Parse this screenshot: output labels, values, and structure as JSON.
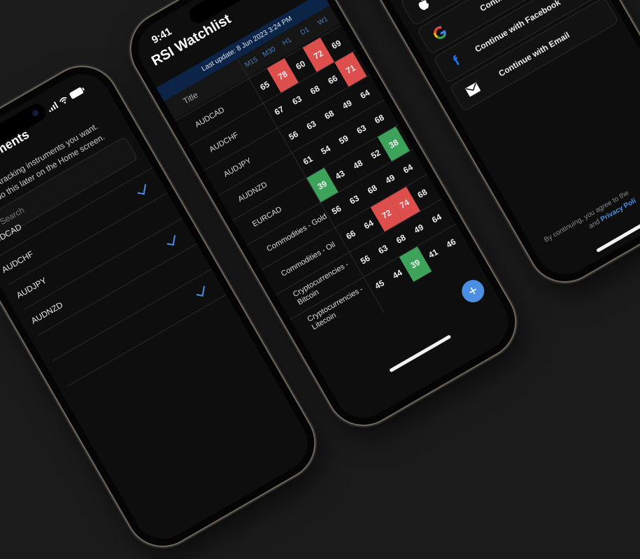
{
  "left_phone": {
    "title": "ments",
    "subtitle_line1": "tracking instruments you want.",
    "subtitle_line2": "do this later on the Home screen.",
    "search_placeholder": "Search",
    "items": [
      {
        "label": "UDCAD",
        "checked": false
      },
      {
        "label": "AUDCHF",
        "checked": true
      },
      {
        "label": "AUDJPY",
        "checked": false
      },
      {
        "label": "AUDNZD",
        "checked": true
      },
      {
        "label": "",
        "checked": false
      },
      {
        "label": "",
        "checked": true
      }
    ],
    "accent": "#4a8fe0"
  },
  "middle_phone": {
    "time": "9:41",
    "title": "RSI Watchlist",
    "last_update": "Last update: 8 Jun 2023 3:24 PM",
    "title_column": "Title",
    "columns": [
      "M15",
      "M30",
      "H1",
      "D1",
      "W1"
    ],
    "rows": [
      {
        "label": "AUDCAD",
        "values": [
          65,
          78,
          60,
          72,
          69
        ]
      },
      {
        "label": "AUDCHF",
        "values": [
          67,
          63,
          68,
          66,
          71
        ]
      },
      {
        "label": "AUDJPY",
        "values": [
          56,
          63,
          68,
          49,
          64
        ]
      },
      {
        "label": "AUDNZD",
        "values": [
          61,
          54,
          59,
          63,
          68
        ]
      },
      {
        "label": "EURCAD",
        "values": [
          39,
          43,
          48,
          52,
          38
        ]
      },
      {
        "label": "Commodities - Gold",
        "values": [
          56,
          63,
          68,
          49,
          64
        ]
      },
      {
        "label": "Commodities - Oil",
        "values": [
          66,
          64,
          72,
          74,
          68
        ]
      },
      {
        "label": "Cryptocurrencies - Bitcoin",
        "values": [
          56,
          63,
          68,
          49,
          64
        ]
      },
      {
        "label": "Cryptocurrencies - Litecoin",
        "values": [
          45,
          44,
          39,
          41,
          46
        ]
      }
    ],
    "overbought_color": "#dd4f4c",
    "oversold_color": "#3ea35a",
    "fab_icon": "plus-icon",
    "fab_label": "+"
  },
  "right_phone": {
    "buttons": [
      {
        "icon": "apple-icon",
        "label": ""
      },
      {
        "icon": "google-icon",
        "label": "Continue wi"
      },
      {
        "icon": "facebook-icon",
        "label": "Continue with Facebook"
      },
      {
        "icon": "mail-icon",
        "label": "Continue with Email"
      }
    ],
    "footer_line1": "By continuing, you agree to the",
    "footer_and": "and",
    "footer_link": "Privacy Poli"
  }
}
